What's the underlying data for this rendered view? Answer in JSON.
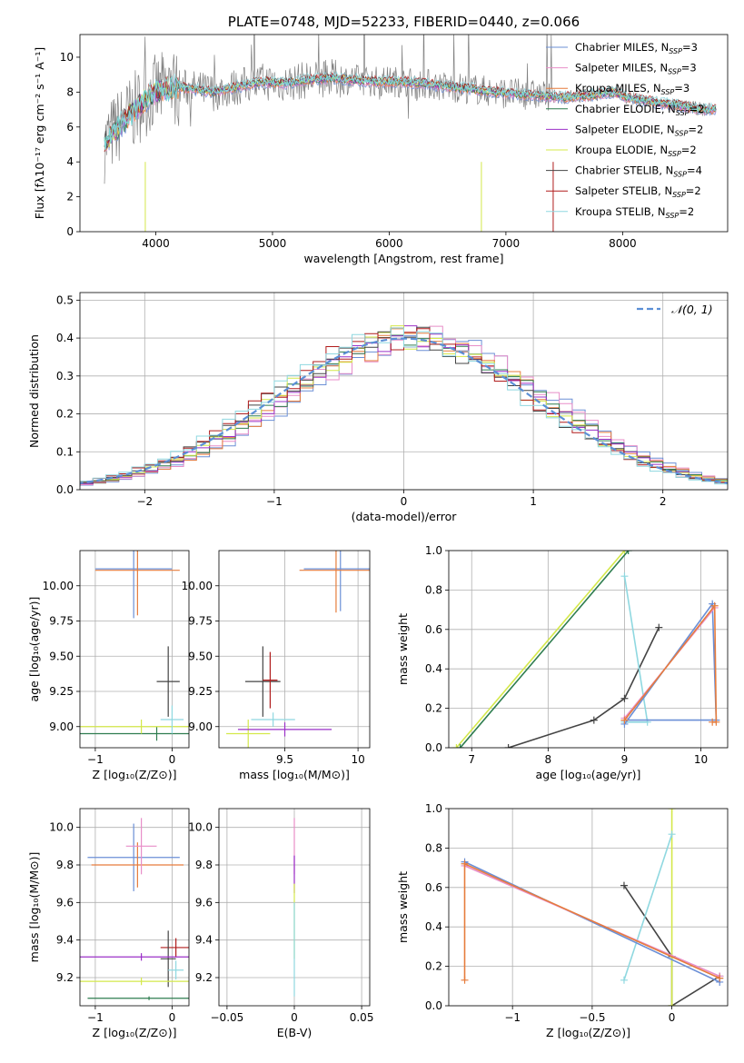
{
  "chart_data": [
    {
      "type": "line",
      "title": "PLATE=0748, MJD=52233, FIBERID=0440, z=0.066",
      "xlabel": "wavelength [Angstrom, rest frame]",
      "ylabel": "Flux [fλ10⁻¹⁷ erg cm⁻² s⁻¹ A⁻¹]",
      "xlim": [
        3350,
        8900
      ],
      "ylim": [
        0,
        11.3
      ],
      "xticks": [
        4000,
        5000,
        6000,
        7000,
        8000
      ],
      "yticks": [
        0,
        2,
        4,
        6,
        8,
        10
      ],
      "grid": false,
      "legend_position": "top-right",
      "legend": [
        {
          "label": "Chabrier MILES, N",
          "sub": "SSP",
          "tail": "=3",
          "color": "#6b8fd6"
        },
        {
          "label": "Salpeter MILES, N",
          "sub": "SSP",
          "tail": "=3",
          "color": "#e88ec8"
        },
        {
          "label": "Kroupa MILES, N",
          "sub": "SSP",
          "tail": "=3",
          "color": "#e67c3c"
        },
        {
          "label": "Chabrier ELODIE, N",
          "sub": "SSP",
          "tail": "=2",
          "color": "#2e7d4f"
        },
        {
          "label": "Salpeter ELODIE, N",
          "sub": "SSP",
          "tail": "=2",
          "color": "#9b30c8"
        },
        {
          "label": "Kroupa ELODIE, N",
          "sub": "SSP",
          "tail": "=2",
          "color": "#d4e84a"
        },
        {
          "label": "Chabrier STELIB, N",
          "sub": "SSP",
          "tail": "=4",
          "color": "#444444"
        },
        {
          "label": "Salpeter STELIB, N",
          "sub": "SSP",
          "tail": "=2",
          "color": "#b01c1c"
        },
        {
          "label": "Kroupa STELIB, N",
          "sub": "SSP",
          "tail": "=2",
          "color": "#8fd8e0"
        }
      ],
      "data_color": "#808080",
      "model_color": "#7dd6d6",
      "model_profile": {
        "x": [
          3560,
          3650,
          3750,
          3850,
          3950,
          4050,
          4150,
          4300,
          4500,
          4700,
          4900,
          5100,
          5300,
          5500,
          5700,
          5900,
          6100,
          6300,
          6500,
          6700,
          6900,
          7100,
          7300,
          7500,
          7700,
          7900,
          8100,
          8300,
          8500,
          8700
        ],
        "y": [
          5.0,
          5.8,
          6.5,
          7.2,
          7.8,
          8.1,
          8.3,
          8.2,
          8.0,
          8.3,
          8.6,
          8.5,
          8.7,
          8.8,
          8.7,
          8.6,
          8.6,
          8.5,
          8.3,
          8.2,
          8.0,
          7.9,
          7.8,
          7.7,
          7.8,
          8.0,
          7.6,
          7.4,
          7.2,
          7.0
        ]
      }
    },
    {
      "type": "histogram",
      "xlabel": "(data-model)/error",
      "ylabel": "Normed distribution",
      "xlim": [
        -2.5,
        2.5
      ],
      "ylim": [
        0,
        0.52
      ],
      "xticks": [
        -2,
        -1,
        0,
        1,
        2
      ],
      "yticks": [
        0.0,
        0.1,
        0.2,
        0.3,
        0.4,
        0.5
      ],
      "grid": true,
      "legend_position": "top-right",
      "legend": [
        {
          "label": "𝒩(0, 1)",
          "color": "#5b8fd6",
          "dashed": true
        }
      ],
      "bin_width": 0.1
    },
    {
      "type": "scatter",
      "subtype": "errorbar",
      "xlabel": "Z [log₁₀(Z/Z⊙)]",
      "ylabel": "age  [log₁₀(age/yr)]",
      "xlim": [
        -1.2,
        0.22
      ],
      "ylim": [
        8.85,
        10.25
      ],
      "xticks": [
        -1,
        0
      ],
      "yticks": [
        9.0,
        9.25,
        9.5,
        9.75,
        10.0
      ],
      "grid": true,
      "points": [
        {
          "x": -0.5,
          "y": 10.12,
          "xerr": 0.5,
          "yerr": 0.35,
          "color": "#6b8fd6"
        },
        {
          "x": -0.45,
          "y": 10.11,
          "xerr": 0.55,
          "yerr": 0.32,
          "color": "#e67c3c"
        },
        {
          "x": -0.05,
          "y": 9.32,
          "xerr": 0.15,
          "yerr": 0.25,
          "color": "#444444"
        },
        {
          "x": -0.2,
          "y": 8.95,
          "xerr": 1.0,
          "yerr": 0.05,
          "color": "#2e7d4f"
        },
        {
          "x": -0.4,
          "y": 9.0,
          "xerr": 0.95,
          "yerr": 0.05,
          "color": "#d4e84a"
        },
        {
          "x": 0.0,
          "y": 9.05,
          "xerr": 0.15,
          "yerr": 0.1,
          "color": "#8fd8e0"
        }
      ]
    },
    {
      "type": "scatter",
      "subtype": "errorbar",
      "xlabel": "mass [log₁₀(M/M⊙)]",
      "ylabel": "",
      "xlim": [
        9.05,
        10.08
      ],
      "ylim": [
        8.85,
        10.25
      ],
      "xticks": [
        9.5,
        10.0
      ],
      "yticks": [
        9.0,
        9.25,
        9.5,
        9.75,
        10.0
      ],
      "grid": true,
      "points": [
        {
          "x": 9.88,
          "y": 10.12,
          "xerr": 0.25,
          "yerr": 0.3,
          "color": "#6b8fd6"
        },
        {
          "x": 9.85,
          "y": 10.11,
          "xerr": 0.25,
          "yerr": 0.3,
          "color": "#e67c3c"
        },
        {
          "x": 9.35,
          "y": 9.32,
          "xerr": 0.12,
          "yerr": 0.25,
          "color": "#444444"
        },
        {
          "x": 9.4,
          "y": 9.33,
          "xerr": 0.05,
          "yerr": 0.2,
          "color": "#b01c1c"
        },
        {
          "x": 9.25,
          "y": 8.95,
          "xerr": 0.15,
          "yerr": 0.1,
          "color": "#d4e84a"
        },
        {
          "x": 9.5,
          "y": 8.98,
          "xerr": 0.32,
          "yerr": 0.05,
          "color": "#9b30c8"
        },
        {
          "x": 9.42,
          "y": 9.05,
          "xerr": 0.15,
          "yerr": 0.05,
          "color": "#8fd8e0"
        }
      ]
    },
    {
      "type": "line",
      "xlabel": "age  [log₁₀(age/yr)]",
      "ylabel": "mass weight",
      "xlim": [
        6.7,
        10.35
      ],
      "ylim": [
        0,
        1.0
      ],
      "xticks": [
        7,
        8,
        9,
        10
      ],
      "yticks": [
        0.0,
        0.2,
        0.4,
        0.6,
        0.8,
        1.0
      ],
      "grid": true,
      "series": [
        {
          "color": "#444444",
          "x": [
            7.48,
            8.6,
            9.0,
            9.45
          ],
          "y": [
            0.0,
            0.14,
            0.25,
            0.61
          ]
        },
        {
          "color": "#d4e84a",
          "x": [
            6.8,
            9.0
          ],
          "y": [
            0.0,
            1.0
          ]
        },
        {
          "color": "#2e7d4f",
          "x": [
            6.85,
            9.05
          ],
          "y": [
            0.0,
            1.0
          ]
        },
        {
          "color": "#8fd8e0",
          "x": [
            9.0,
            9.3,
            9.0
          ],
          "y": [
            0.87,
            0.13,
            0.13
          ]
        },
        {
          "color": "#6b8fd6",
          "x": [
            9.0,
            10.15,
            10.2,
            9.0
          ],
          "y": [
            0.12,
            0.73,
            0.14,
            0.14
          ]
        },
        {
          "color": "#e88ec8",
          "x": [
            9.0,
            10.18
          ],
          "y": [
            0.15,
            0.71
          ]
        },
        {
          "color": "#e67c3c",
          "x": [
            9.0,
            10.18,
            10.2,
            10.15
          ],
          "y": [
            0.14,
            0.72,
            0.13,
            0.13
          ]
        }
      ]
    },
    {
      "type": "scatter",
      "subtype": "errorbar",
      "xlabel": "Z [log₁₀(Z/Z⊙)]",
      "ylabel": "mass [log₁₀(M/M⊙)]",
      "xlim": [
        -1.2,
        0.22
      ],
      "ylim": [
        9.05,
        10.1
      ],
      "xticks": [
        -1,
        0
      ],
      "yticks": [
        9.2,
        9.4,
        9.6,
        9.8,
        10.0
      ],
      "grid": true,
      "points": [
        {
          "x": -0.5,
          "y": 9.84,
          "xerr": 0.6,
          "yerr": 0.18,
          "color": "#6b8fd6"
        },
        {
          "x": -0.45,
          "y": 9.8,
          "xerr": 0.6,
          "yerr": 0.12,
          "color": "#e67c3c"
        },
        {
          "x": -0.4,
          "y": 9.9,
          "xerr": 0.2,
          "yerr": 0.15,
          "color": "#e88ec8"
        },
        {
          "x": 0.05,
          "y": 9.36,
          "xerr": 0.2,
          "yerr": 0.05,
          "color": "#b01c1c"
        },
        {
          "x": -0.05,
          "y": 9.3,
          "xerr": 0.1,
          "yerr": 0.15,
          "color": "#444444"
        },
        {
          "x": -0.4,
          "y": 9.31,
          "xerr": 0.8,
          "yerr": 0.02,
          "color": "#9b30c8"
        },
        {
          "x": -0.4,
          "y": 9.18,
          "xerr": 0.9,
          "yerr": 0.02,
          "color": "#d4e84a"
        },
        {
          "x": -0.3,
          "y": 9.09,
          "xerr": 0.8,
          "yerr": 0.01,
          "color": "#2e7d4f"
        },
        {
          "x": 0.05,
          "y": 9.24,
          "xerr": 0.1,
          "yerr": 0.05,
          "color": "#8fd8e0"
        }
      ]
    },
    {
      "type": "scatter",
      "subtype": "errorbar",
      "xlabel": "E(B-V)",
      "ylabel": "",
      "xlim": [
        -0.056,
        0.056
      ],
      "ylim": [
        9.05,
        10.1
      ],
      "xticks": [
        -0.05,
        0.0,
        0.05
      ],
      "yticks": [
        9.2,
        9.4,
        9.6,
        9.8,
        10.0
      ],
      "grid": true,
      "points": [
        {
          "x": 0.0,
          "y": 9.9,
          "xerr": 0.0,
          "yerr": 0.15,
          "color": "#e88ec8"
        },
        {
          "x": 0.0,
          "y": 9.75,
          "xerr": 0.0,
          "yerr": 0.1,
          "color": "#9b30c8"
        },
        {
          "x": 0.0,
          "y": 9.5,
          "xerr": 0.0,
          "yerr": 0.2,
          "color": "#d4e84a"
        },
        {
          "x": 0.0,
          "y": 9.35,
          "xerr": 0.0,
          "yerr": 0.25,
          "color": "#8fd8e0"
        }
      ]
    },
    {
      "type": "line",
      "xlabel": "Z [log₁₀(Z/Z⊙)]",
      "ylabel": "mass weight",
      "xlim": [
        -1.4,
        0.35
      ],
      "ylim": [
        0,
        1.0
      ],
      "xticks": [
        -1.0,
        -0.5,
        0.0
      ],
      "yticks": [
        0.0,
        0.2,
        0.4,
        0.6,
        0.8,
        1.0
      ],
      "grid": true,
      "series": [
        {
          "color": "#444444",
          "x": [
            -0.3,
            0.0,
            0.0,
            0.3
          ],
          "y": [
            0.61,
            0.25,
            0.0,
            0.15
          ]
        },
        {
          "color": "#d4e84a",
          "x": [
            0.0,
            0.0
          ],
          "y": [
            0.0,
            1.0
          ]
        },
        {
          "color": "#8fd8e0",
          "x": [
            -0.3,
            0.0
          ],
          "y": [
            0.13,
            0.87
          ]
        },
        {
          "color": "#6b8fd6",
          "x": [
            -1.3,
            0.3,
            0.3
          ],
          "y": [
            0.73,
            0.12,
            0.14
          ]
        },
        {
          "color": "#e88ec8",
          "x": [
            -1.3,
            0.3
          ],
          "y": [
            0.71,
            0.15
          ]
        },
        {
          "color": "#e67c3c",
          "x": [
            -1.3,
            -1.3,
            0.3
          ],
          "y": [
            0.13,
            0.72,
            0.14
          ]
        }
      ]
    }
  ]
}
